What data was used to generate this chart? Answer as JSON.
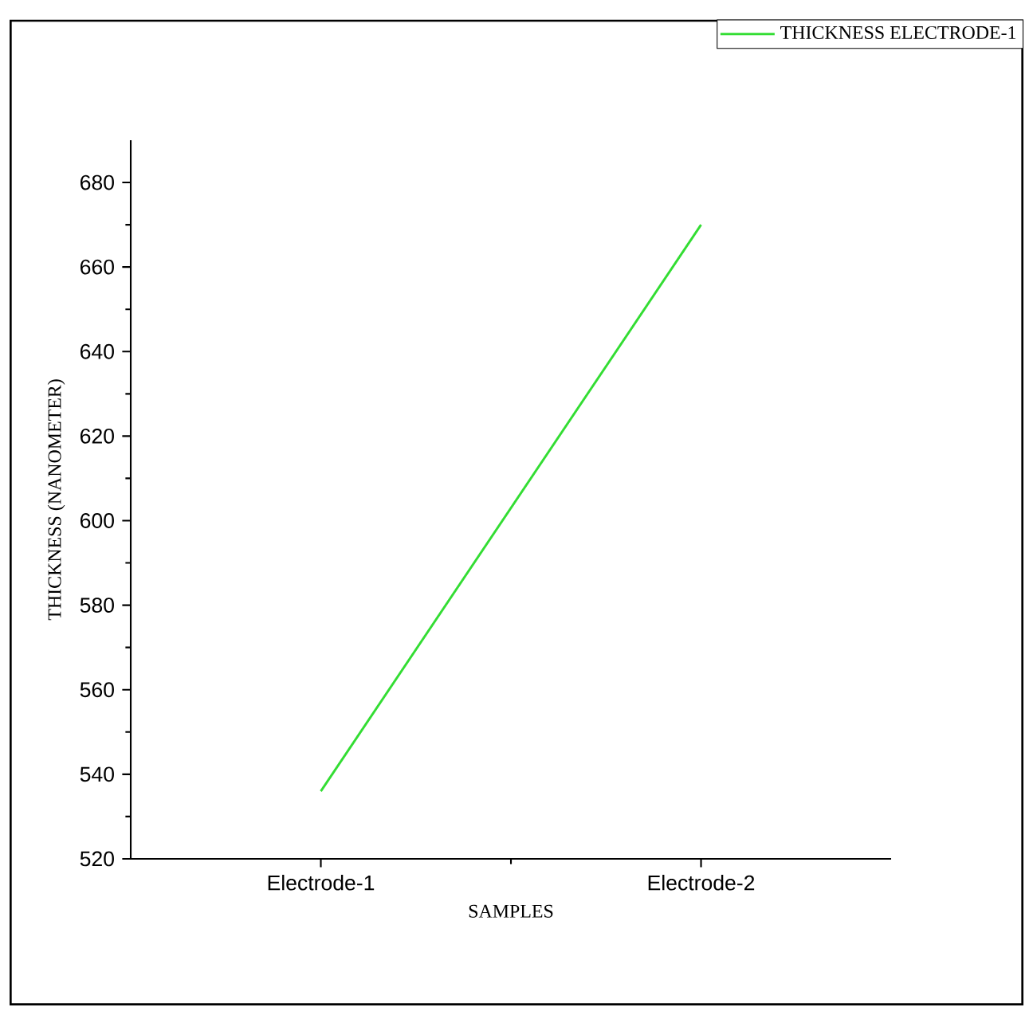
{
  "chart_data": {
    "type": "line",
    "xlabel": "SAMPLES",
    "ylabel": "THICKNESS (NANOMETER)",
    "categories": [
      "Electrode-1",
      "Electrode-2"
    ],
    "series": [
      {
        "name": "THICKNESS ELECTRODE-1",
        "color": "#33dd33",
        "values": [
          536,
          670
        ]
      }
    ],
    "ylim": [
      520,
      690
    ],
    "yticks": [
      520,
      540,
      560,
      580,
      600,
      620,
      640,
      660,
      680
    ],
    "legend": "top right",
    "grid": false,
    "marker": "none",
    "line_style": "solid"
  }
}
